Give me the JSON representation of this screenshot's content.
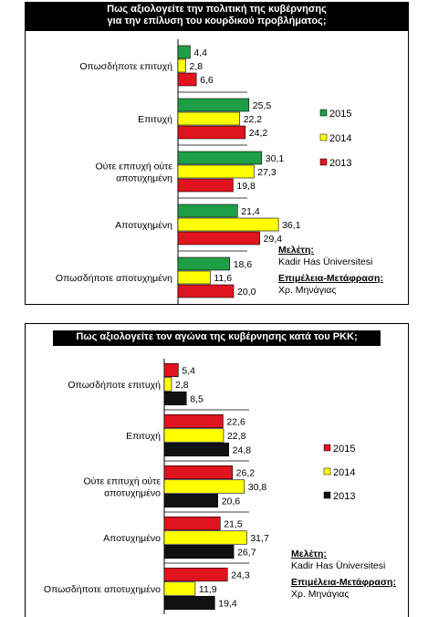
{
  "chart_data": [
    {
      "type": "bar",
      "orientation": "horizontal",
      "title_line1": "Πως αξιολογείτε την πολιτική της κυβέρνησης",
      "title_line2": "για την επίλυση του κουρδικού προβλήματος;",
      "categories": [
        "Οπωσδήποτε επιτυχή",
        "Επιτυχή",
        "Ούτε επιτυχή ούτε αποτυχημένη",
        "Αποτυχημένη",
        "Οπωσδήποτε αποτυχημένη"
      ],
      "series": [
        {
          "name": "2015",
          "color": "#1e9e45",
          "values": [
            4.4,
            25.5,
            30.1,
            21.4,
            18.6
          ]
        },
        {
          "name": "2014",
          "color": "#ffff00",
          "values": [
            2.8,
            22.2,
            27.3,
            36.1,
            11.6
          ]
        },
        {
          "name": "2013",
          "color": "#e0141e",
          "values": [
            6.6,
            24.2,
            19.8,
            29.4,
            20.0
          ]
        }
      ],
      "value_labels": [
        [
          "4,4",
          "25,5",
          "30,1",
          "21,4",
          "18,6"
        ],
        [
          "2,8",
          "22,2",
          "27,3",
          "36,1",
          "11,6"
        ],
        [
          "6,6",
          "24,2",
          "19,8",
          "29,4",
          "20,0"
        ]
      ],
      "legend_position": "right",
      "credits": {
        "study_label": "Μελέτη:",
        "study": "Kadir Has Üniversitesi",
        "editor_label": "Επιμέλεια-Μετάφραση:",
        "editor": "Χρ. Μηνάγιας"
      }
    },
    {
      "type": "bar",
      "orientation": "horizontal",
      "title_line1": "Πως αξιολογείτε τον αγώνα της κυβέρνησης κατά του PKK;",
      "title_line2": "",
      "categories": [
        "Οπωσδήποτε επιτυχή",
        "Επιτυχή",
        "Ούτε επιτυχή ούτε αποτυχημένο",
        "Αποτυχημένο",
        "Οπωσδήποτε αποτυχημένο"
      ],
      "series": [
        {
          "name": "2015",
          "color": "#e0141e",
          "values": [
            5.4,
            22.6,
            26.2,
            21.5,
            24.3
          ]
        },
        {
          "name": "2014",
          "color": "#ffff00",
          "values": [
            2.8,
            22.8,
            30.8,
            31.7,
            11.9
          ]
        },
        {
          "name": "2013",
          "color": "#111111",
          "values": [
            8.5,
            24.8,
            20.6,
            26.7,
            19.4
          ]
        }
      ],
      "value_labels": [
        [
          "5,4",
          "22,6",
          "26,2",
          "21,5",
          "24,3"
        ],
        [
          "2,8",
          "22,8",
          "30,8",
          "31,7",
          "11,9"
        ],
        [
          "8,5",
          "24,8",
          "20,6",
          "26,7",
          "19,4"
        ]
      ],
      "legend_position": "right",
      "credits": {
        "study_label": "Μελέτη:",
        "study": "Kadir Has Üniversitesi",
        "editor_label": "Επιμέλεια-Μετάφραση:",
        "editor": "Χρ. Μηνάγιας"
      }
    }
  ]
}
